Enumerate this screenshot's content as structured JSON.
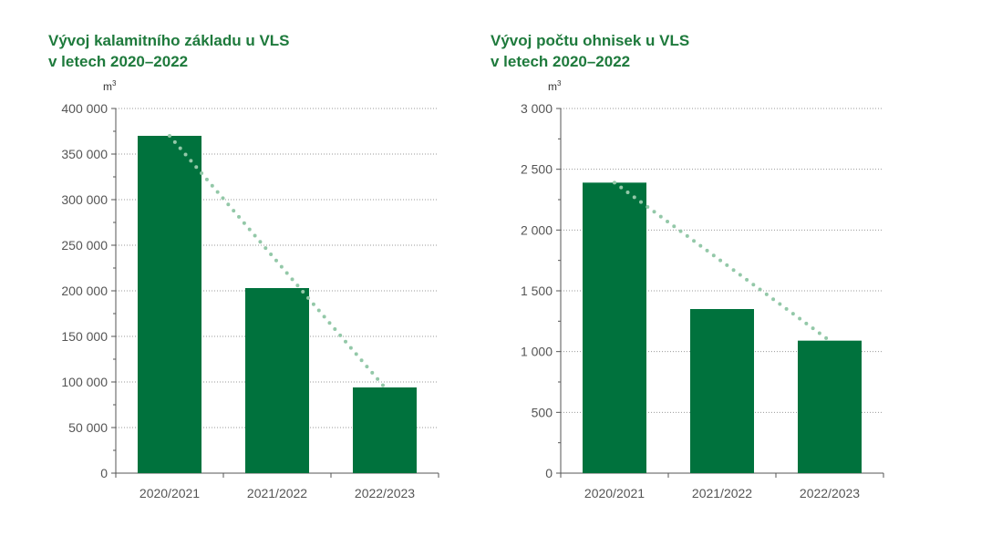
{
  "chart_data": [
    {
      "type": "bar",
      "title_line1": "Vývoj kalamitního základu u VLS",
      "title_line2": "v letech 2020–2022",
      "ylabel": "m",
      "ylabel_sup": "3",
      "categories": [
        "2020/2021",
        "2021/2022",
        "2022/2023"
      ],
      "values": [
        370000,
        203000,
        94000
      ],
      "ylim": [
        0,
        400000
      ],
      "yticks": [
        0,
        50000,
        100000,
        150000,
        200000,
        250000,
        300000,
        350000,
        400000
      ],
      "ytick_labels": [
        "0",
        "50 000",
        "100 000",
        "150 000",
        "200 000",
        "250 000",
        "300 000",
        "350 000",
        "400 000"
      ],
      "trend": {
        "style": "dotted",
        "from_value": 370000,
        "to_value": 94000
      },
      "grid": true
    },
    {
      "type": "bar",
      "title_line1": "Vývoj počtu ohnisek u VLS",
      "title_line2": "v letech 2020–2022",
      "ylabel": "m",
      "ylabel_sup": "3",
      "categories": [
        "2020/2021",
        "2021/2022",
        "2022/2023"
      ],
      "values": [
        2390,
        1350,
        1090
      ],
      "ylim": [
        0,
        3000
      ],
      "yticks": [
        0,
        500,
        1000,
        1500,
        2000,
        2500,
        3000
      ],
      "ytick_labels": [
        "0",
        "500",
        "1 000",
        "1 500",
        "2 000",
        "2 500",
        "3 000"
      ],
      "trend": {
        "style": "dotted",
        "from_value": 2390,
        "to_value": 1090
      },
      "grid": true
    }
  ],
  "colors": {
    "bar": "#00723d",
    "title": "#1e7a3c",
    "trend": "#93c8a8",
    "grid": "#999999",
    "axis": "#555555"
  }
}
